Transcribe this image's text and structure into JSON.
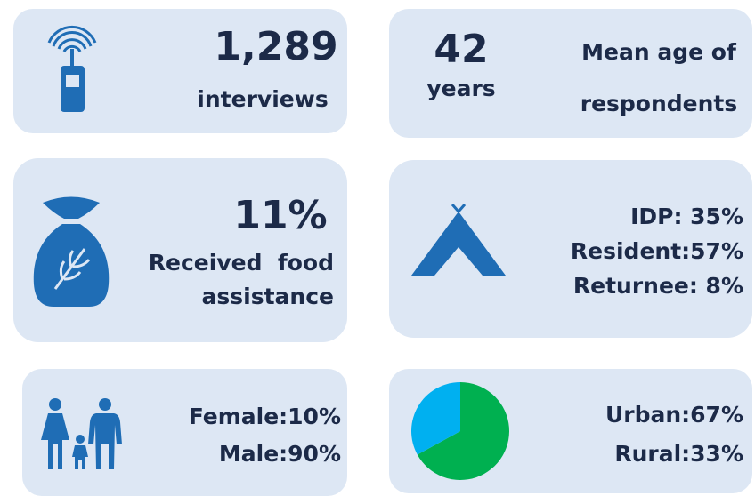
{
  "cards": [
    {
      "value": "1,289",
      "label": "interviews"
    },
    {
      "value": "42",
      "unit": "years",
      "label_lines": [
        "Mean age of",
        "respondents"
      ]
    },
    {
      "value": "11%",
      "label_lines": [
        "Received  food",
        "assistance"
      ]
    },
    {
      "lines": [
        "IDP: 35%",
        "Resident:57%",
        "Returnee: 8%"
      ]
    },
    {
      "lines": [
        "Female:10%",
        "Male:90%"
      ]
    },
    {
      "lines": [
        "Urban:67%",
        "Rural:33%"
      ],
      "pie": {
        "values": [
          67,
          33
        ],
        "colors": [
          "#00b050",
          "#00b0f0"
        ]
      }
    }
  ]
}
